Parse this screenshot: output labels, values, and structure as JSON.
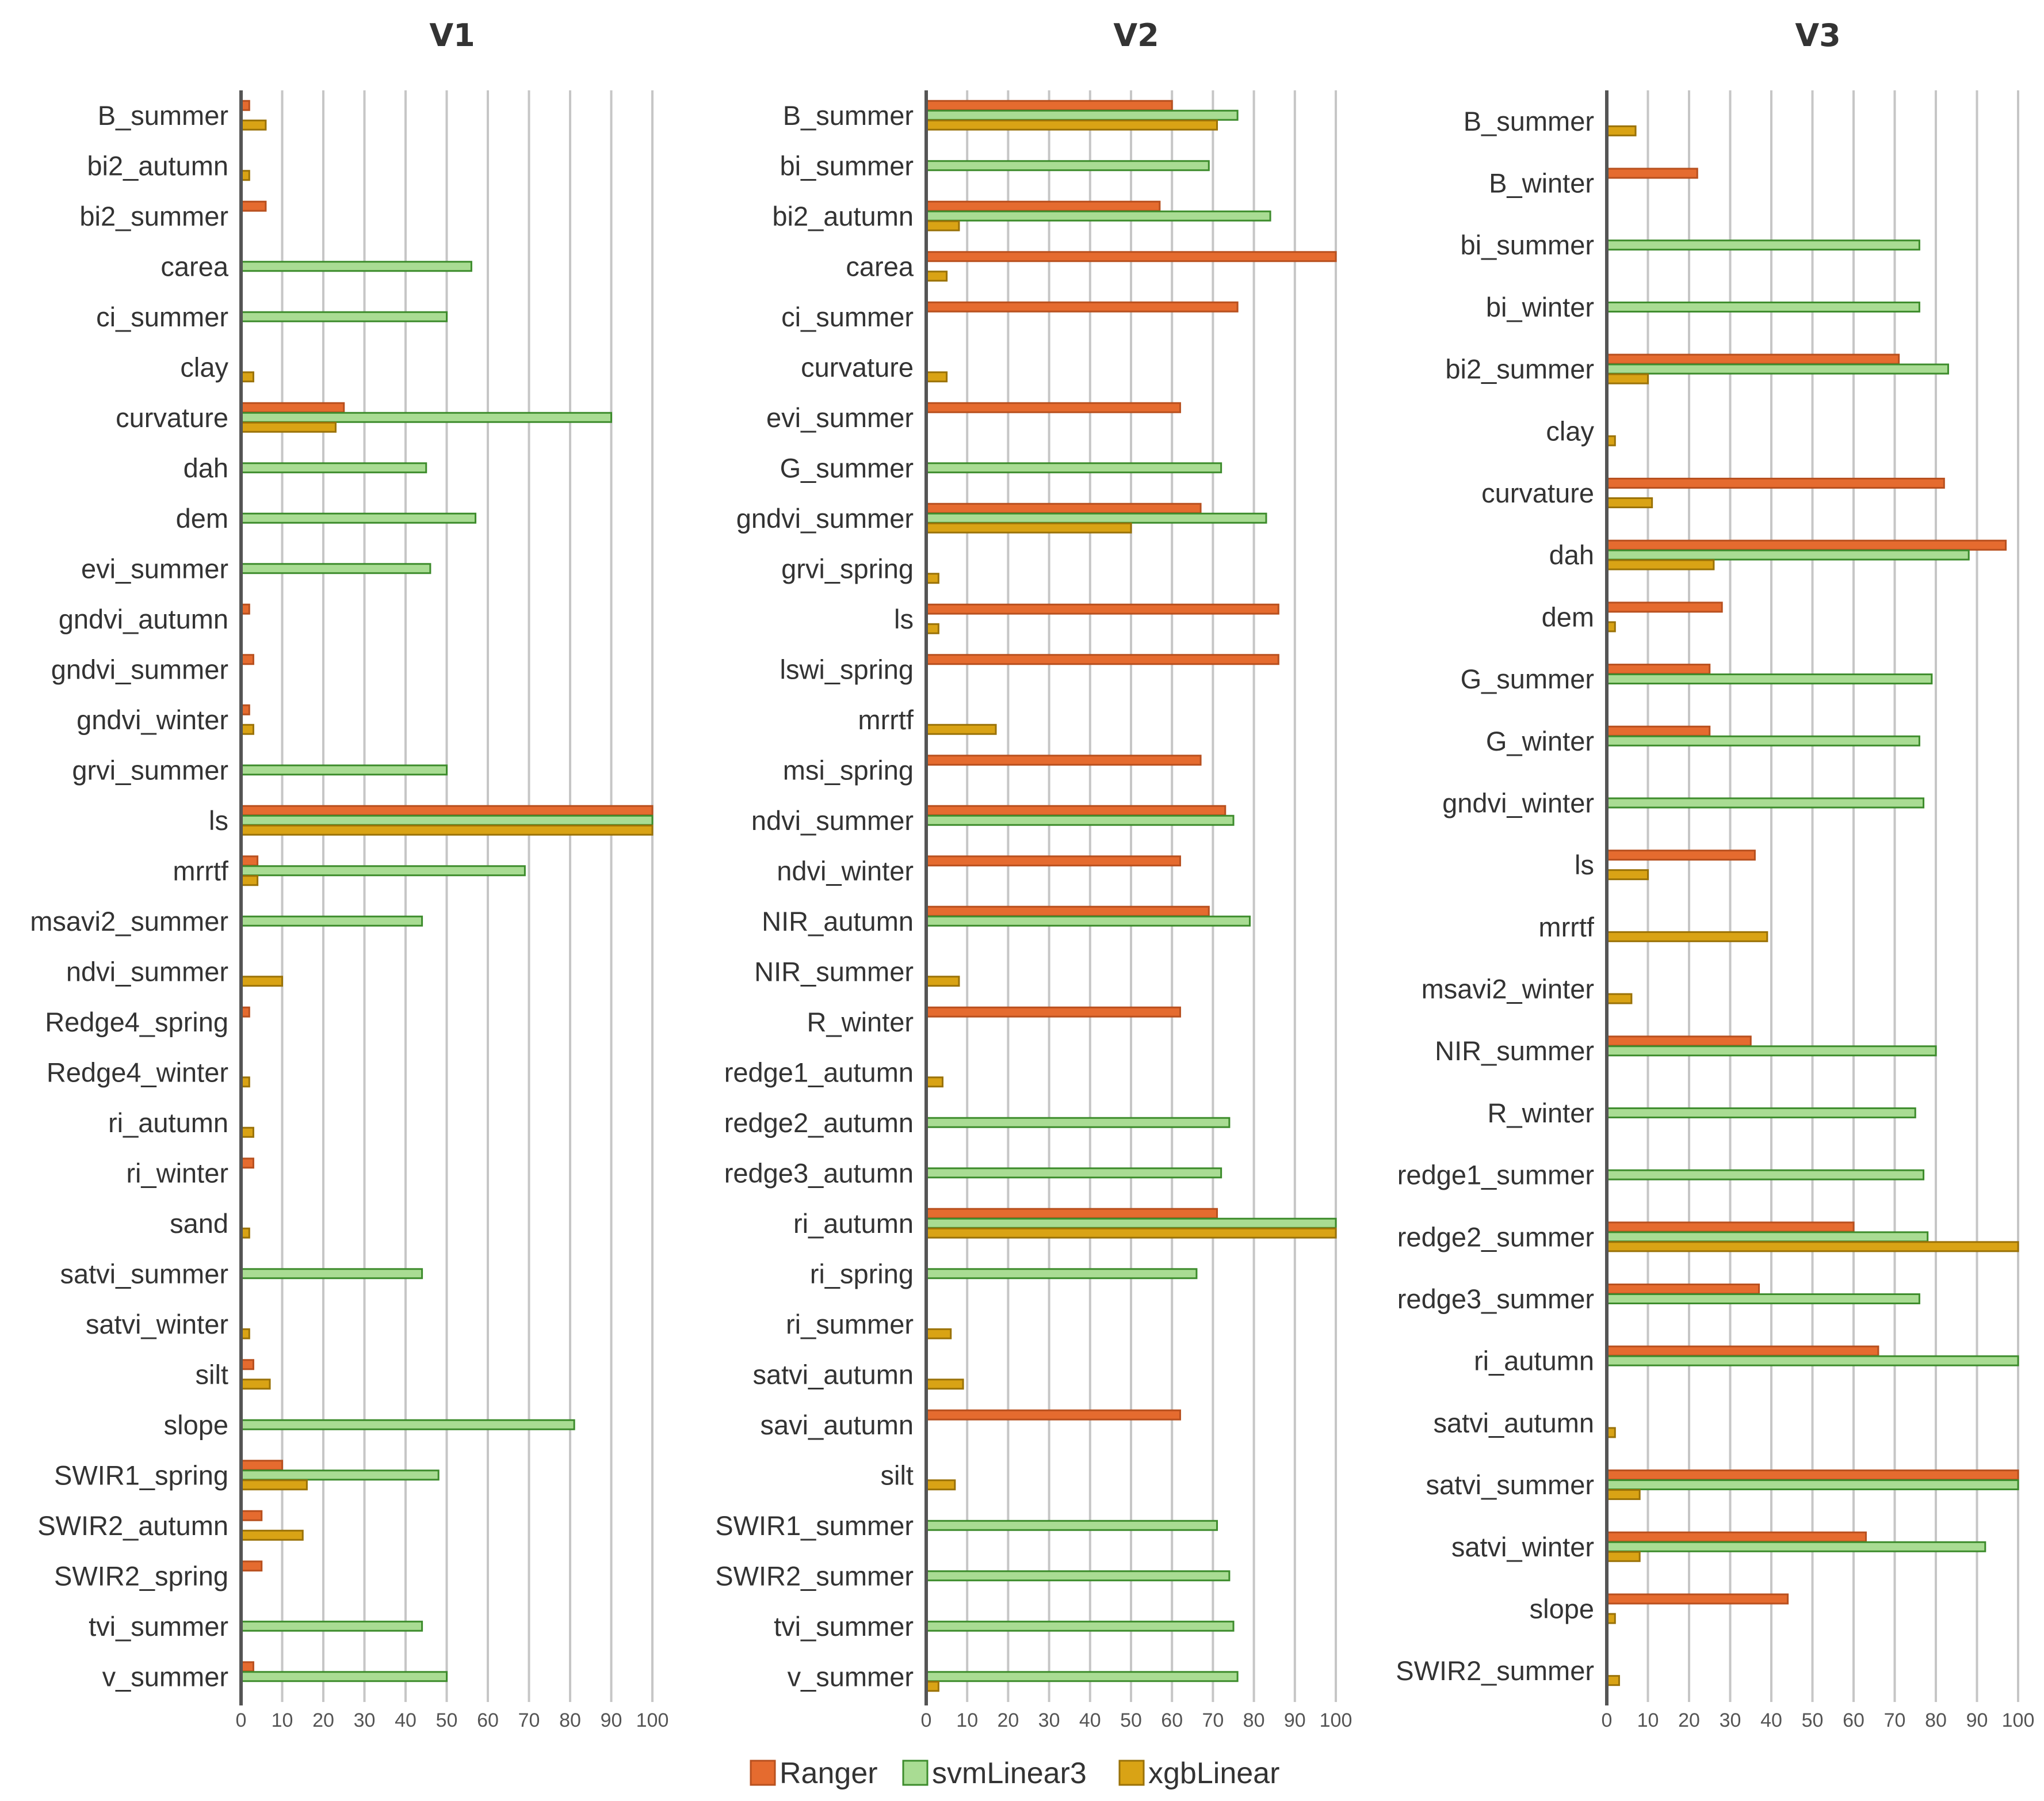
{
  "chart_data": [
    {
      "type": "bar",
      "orientation": "horizontal",
      "title": "V1",
      "xlim": [
        0,
        100
      ],
      "xticks": [
        0,
        10,
        20,
        30,
        40,
        50,
        60,
        70,
        80,
        90,
        100
      ],
      "categories": [
        "B_summer",
        "bi2_autumn",
        "bi2_summer",
        "carea",
        "ci_summer",
        "clay",
        "curvature",
        "dah",
        "dem",
        "evi_summer",
        "gndvi_autumn",
        "gndvi_summer",
        "gndvi_winter",
        "grvi_summer",
        "ls",
        "mrrtf",
        "msavi2_summer",
        "ndvi_summer",
        "Redge4_spring",
        "Redge4_winter",
        "ri_autumn",
        "ri_winter",
        "sand",
        "satvi_summer",
        "satvi_winter",
        "silt",
        "slope",
        "SWIR1_spring",
        "SWIR2_autumn",
        "SWIR2_spring",
        "tvi_summer",
        "v_summer"
      ],
      "series": [
        {
          "name": "Ranger",
          "values": [
            2,
            null,
            6,
            null,
            null,
            null,
            25,
            null,
            null,
            null,
            2,
            3,
            2,
            null,
            100,
            4,
            null,
            null,
            2,
            null,
            null,
            3,
            null,
            null,
            null,
            3,
            null,
            10,
            5,
            5,
            null,
            3
          ]
        },
        {
          "name": "svmLinear3",
          "values": [
            null,
            null,
            null,
            56,
            50,
            null,
            90,
            45,
            57,
            46,
            null,
            null,
            null,
            50,
            100,
            69,
            44,
            null,
            null,
            null,
            null,
            null,
            null,
            44,
            null,
            null,
            81,
            48,
            null,
            null,
            44,
            50
          ]
        },
        {
          "name": "xgbLinear",
          "values": [
            6,
            2,
            null,
            null,
            null,
            3,
            23,
            null,
            null,
            null,
            null,
            null,
            3,
            null,
            100,
            4,
            null,
            10,
            null,
            2,
            3,
            null,
            2,
            null,
            2,
            7,
            null,
            16,
            15,
            null,
            null,
            null
          ]
        }
      ]
    },
    {
      "type": "bar",
      "orientation": "horizontal",
      "title": "V2",
      "xlim": [
        0,
        100
      ],
      "xticks": [
        0,
        10,
        20,
        30,
        40,
        50,
        60,
        70,
        80,
        90,
        100
      ],
      "categories": [
        "B_summer",
        "bi_summer",
        "bi2_autumn",
        "carea",
        "ci_summer",
        "curvature",
        "evi_summer",
        "G_summer",
        "gndvi_summer",
        "grvi_spring",
        "ls",
        "lswi_spring",
        "mrrtf",
        "msi_spring",
        "ndvi_summer",
        "ndvi_winter",
        "NIR_autumn",
        "NIR_summer",
        "R_winter",
        "redge1_autumn",
        "redge2_autumn",
        "redge3_autumn",
        "ri_autumn",
        "ri_spring",
        "ri_summer",
        "satvi_autumn",
        "savi_autumn",
        "silt",
        "SWIR1_summer",
        "SWIR2_summer",
        "tvi_summer",
        "v_summer"
      ],
      "series": [
        {
          "name": "Ranger",
          "values": [
            60,
            null,
            57,
            100,
            76,
            null,
            62,
            null,
            67,
            null,
            86,
            86,
            null,
            67,
            73,
            62,
            69,
            null,
            62,
            null,
            null,
            null,
            71,
            null,
            null,
            null,
            62,
            null,
            null,
            null,
            null,
            null
          ]
        },
        {
          "name": "svmLinear3",
          "values": [
            76,
            69,
            84,
            null,
            null,
            null,
            null,
            72,
            83,
            null,
            null,
            null,
            null,
            null,
            75,
            null,
            79,
            null,
            null,
            null,
            74,
            72,
            100,
            66,
            null,
            null,
            null,
            null,
            71,
            74,
            75,
            76
          ]
        },
        {
          "name": "xgbLinear",
          "values": [
            71,
            null,
            8,
            5,
            null,
            5,
            null,
            null,
            50,
            3,
            3,
            null,
            17,
            null,
            null,
            null,
            null,
            8,
            null,
            4,
            null,
            null,
            100,
            null,
            6,
            9,
            null,
            7,
            null,
            null,
            null,
            3
          ]
        }
      ]
    },
    {
      "type": "bar",
      "orientation": "horizontal",
      "title": "V3",
      "xlim": [
        0,
        100
      ],
      "xticks": [
        0,
        10,
        20,
        30,
        40,
        50,
        60,
        70,
        80,
        90,
        100
      ],
      "categories": [
        "B_summer",
        "B_winter",
        "bi_summer",
        "bi_winter",
        "bi2_summer",
        "clay",
        "curvature",
        "dah",
        "dem",
        "G_summer",
        "G_winter",
        "gndvi_winter",
        "ls",
        "mrrtf",
        "msavi2_winter",
        "NIR_summer",
        "R_winter",
        "redge1_summer",
        "redge2_summer",
        "redge3_summer",
        "ri_autumn",
        "satvi_autumn",
        "satvi_summer",
        "satvi_winter",
        "slope",
        "SWIR2_summer"
      ],
      "series": [
        {
          "name": "Ranger",
          "values": [
            null,
            22,
            null,
            null,
            71,
            null,
            82,
            97,
            28,
            25,
            25,
            null,
            36,
            null,
            null,
            35,
            null,
            null,
            60,
            37,
            66,
            null,
            100,
            63,
            44,
            null
          ]
        },
        {
          "name": "svmLinear3",
          "values": [
            null,
            null,
            76,
            76,
            83,
            null,
            null,
            88,
            null,
            79,
            76,
            77,
            null,
            null,
            null,
            80,
            75,
            77,
            78,
            76,
            100,
            null,
            100,
            92,
            null,
            null
          ]
        },
        {
          "name": "xgbLinear",
          "values": [
            7,
            null,
            null,
            null,
            10,
            2,
            11,
            26,
            2,
            null,
            null,
            null,
            10,
            39,
            6,
            null,
            null,
            null,
            100,
            null,
            null,
            2,
            8,
            8,
            2,
            3
          ]
        }
      ]
    }
  ],
  "legend": {
    "items": [
      {
        "label": "Ranger",
        "color": "#e56b2f"
      },
      {
        "label": "svmLinear3",
        "color": "#a9dc93"
      },
      {
        "label": "xgbLinear",
        "color": "#d9a315"
      }
    ]
  },
  "colors": {
    "Ranger": {
      "fill": "#e56b2f",
      "stroke": "#b8501f"
    },
    "svmLinear3": {
      "fill": "#a9dc93",
      "stroke": "#3d8c2c"
    },
    "xgbLinear": {
      "fill": "#d9a315",
      "stroke": "#9a7208"
    }
  }
}
